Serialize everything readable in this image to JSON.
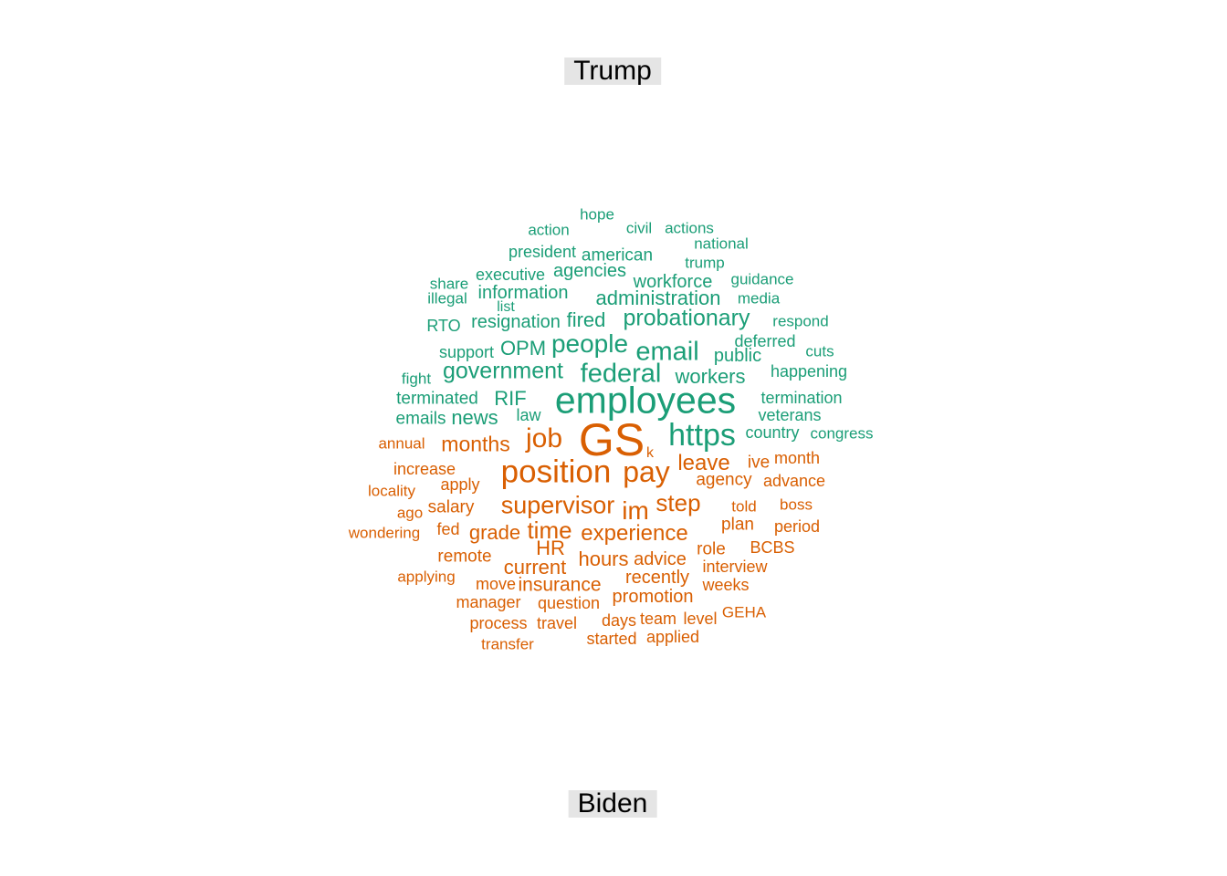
{
  "labels": {
    "top": "Trump",
    "bottom": "Biden"
  },
  "colors": {
    "trump": "#1b9e77",
    "biden": "#d95f02",
    "label_bg": "#e5e5e5"
  },
  "trump_words": [
    "hope",
    "action",
    "civil",
    "actions",
    "national",
    "president",
    "american",
    "trump",
    "executive",
    "agencies",
    "share",
    "guidance",
    "workforce",
    "illegal",
    "information",
    "media",
    "list",
    "administration",
    "RTO",
    "resignation",
    "fired",
    "probationary",
    "respond",
    "support",
    "OPM",
    "people",
    "deferred",
    "email",
    "cuts",
    "public",
    "fight",
    "government",
    "federal",
    "workers",
    "happening",
    "terminated",
    "RIF",
    "employees",
    "termination",
    "emails",
    "news",
    "law",
    "veterans",
    "https",
    "country",
    "congress"
  ],
  "biden_words": [
    "annual",
    "months",
    "job",
    "GS",
    "k",
    "month",
    "increase",
    "position",
    "pay",
    "leave",
    "ive",
    "apply",
    "agency",
    "advance",
    "locality",
    "supervisor",
    "step",
    "ago",
    "salary",
    "im",
    "told",
    "boss",
    "wondering",
    "fed",
    "grade",
    "time",
    "plan",
    "period",
    "experience",
    "remote",
    "HR",
    "role",
    "BCBS",
    "hours",
    "advice",
    "current",
    "applying",
    "interview",
    "move",
    "insurance",
    "recently",
    "weeks",
    "manager",
    "question",
    "promotion",
    "GEHA",
    "process",
    "travel",
    "days",
    "team",
    "level",
    "transfer",
    "started",
    "applied"
  ]
}
